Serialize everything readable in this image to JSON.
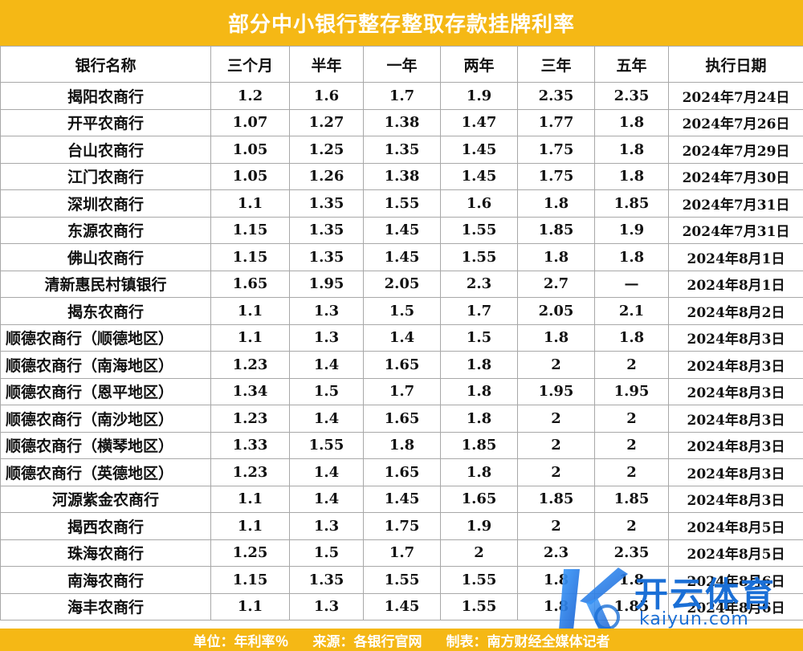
{
  "title": "部分中小银行整存整取存款挂牌利率",
  "table": {
    "headers": [
      "银行名称",
      "三个月",
      "半年",
      "一年",
      "两年",
      "三年",
      "五年",
      "执行日期"
    ],
    "rows": [
      [
        "揭阳农商行",
        "1.2",
        "1.6",
        "1.7",
        "1.9",
        "2.35",
        "2.35",
        "2024年7月24日"
      ],
      [
        "开平农商行",
        "1.07",
        "1.27",
        "1.38",
        "1.47",
        "1.77",
        "1.8",
        "2024年7月26日"
      ],
      [
        "台山农商行",
        "1.05",
        "1.25",
        "1.35",
        "1.45",
        "1.75",
        "1.8",
        "2024年7月29日"
      ],
      [
        "江门农商行",
        "1.05",
        "1.26",
        "1.38",
        "1.45",
        "1.75",
        "1.8",
        "2024年7月30日"
      ],
      [
        "深圳农商行",
        "1.1",
        "1.35",
        "1.55",
        "1.6",
        "1.8",
        "1.85",
        "2024年7月31日"
      ],
      [
        "东源农商行",
        "1.15",
        "1.35",
        "1.45",
        "1.55",
        "1.85",
        "1.9",
        "2024年7月31日"
      ],
      [
        "佛山农商行",
        "1.15",
        "1.35",
        "1.45",
        "1.55",
        "1.8",
        "1.8",
        "2024年8月1日"
      ],
      [
        "清新惠民村镇银行",
        "1.65",
        "1.95",
        "2.05",
        "2.3",
        "2.7",
        "—",
        "2024年8月1日"
      ],
      [
        "揭东农商行",
        "1.1",
        "1.3",
        "1.5",
        "1.7",
        "2.05",
        "2.1",
        "2024年8月2日"
      ],
      [
        "顺德农商行（顺德地区）",
        "1.1",
        "1.3",
        "1.4",
        "1.5",
        "1.8",
        "1.8",
        "2024年8月3日"
      ],
      [
        "顺德农商行（南海地区）",
        "1.23",
        "1.4",
        "1.65",
        "1.8",
        "2",
        "2",
        "2024年8月3日"
      ],
      [
        "顺德农商行（恩平地区）",
        "1.34",
        "1.5",
        "1.7",
        "1.8",
        "1.95",
        "1.95",
        "2024年8月3日"
      ],
      [
        "顺德农商行（南沙地区）",
        "1.23",
        "1.4",
        "1.65",
        "1.8",
        "2",
        "2",
        "2024年8月3日"
      ],
      [
        "顺德农商行（横琴地区）",
        "1.33",
        "1.55",
        "1.8",
        "1.85",
        "2",
        "2",
        "2024年8月3日"
      ],
      [
        "顺德农商行（英德地区）",
        "1.23",
        "1.4",
        "1.65",
        "1.8",
        "2",
        "2",
        "2024年8月3日"
      ],
      [
        "河源紫金农商行",
        "1.1",
        "1.4",
        "1.45",
        "1.65",
        "1.85",
        "1.85",
        "2024年8月3日"
      ],
      [
        "揭西农商行",
        "1.1",
        "1.3",
        "1.75",
        "1.9",
        "2",
        "2",
        "2024年8月5日"
      ],
      [
        "珠海农商行",
        "1.25",
        "1.5",
        "1.7",
        "2",
        "2.3",
        "2.35",
        "2024年8月5日"
      ],
      [
        "南海农商行",
        "1.15",
        "1.35",
        "1.55",
        "1.55",
        "1.8",
        "1.8",
        "2024年8月6日"
      ],
      [
        "海丰农商行",
        "1.1",
        "1.3",
        "1.45",
        "1.55",
        "1.8",
        "1.85",
        "2024年8月6日"
      ]
    ]
  },
  "footer": {
    "unit": "单位：年利率％",
    "source": "来源：各银行官网",
    "maker": "制表：南方财经全媒体记者"
  },
  "watermark": {
    "brand": "开云体育",
    "domain": "kaiyun.com",
    "icon": "k-logo-icon"
  },
  "colors": {
    "accent": "#f5b815",
    "watermark": "#1a6fd6"
  }
}
